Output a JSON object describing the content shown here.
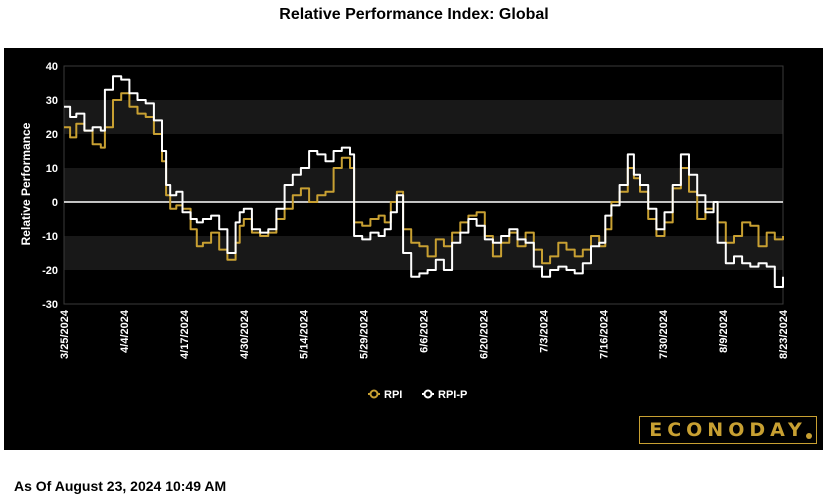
{
  "chart_data": {
    "type": "line",
    "title": "Relative Performance Index: Global",
    "ylabel": "Relative Performance",
    "xlabel": "",
    "ylim": [
      -30,
      40
    ],
    "yticks": [
      40,
      30,
      20,
      10,
      0,
      -10,
      -20,
      -30
    ],
    "xtick_labels": [
      "3/25/2024",
      "4/4/2024",
      "4/17/2024",
      "4/30/2024",
      "5/14/2024",
      "5/29/2024",
      "6/6/2024",
      "6/20/2024",
      "7/3/2024",
      "7/16/2024",
      "7/30/2024",
      "8/9/2024",
      "8/23/2024"
    ],
    "grid": "alternating horizontal bands",
    "legend_position": "bottom-center",
    "series": [
      {
        "name": "RPI",
        "color": "#c8a032",
        "values": [
          [
            0,
            22
          ],
          [
            3,
            19
          ],
          [
            6,
            23
          ],
          [
            10,
            21
          ],
          [
            14,
            17
          ],
          [
            18,
            16
          ],
          [
            20,
            22
          ],
          [
            24,
            30
          ],
          [
            28,
            32
          ],
          [
            32,
            28
          ],
          [
            36,
            26
          ],
          [
            40,
            25
          ],
          [
            44,
            20
          ],
          [
            48,
            12
          ],
          [
            50,
            2
          ],
          [
            52,
            -2
          ],
          [
            55,
            -1
          ],
          [
            58,
            -2
          ],
          [
            62,
            -8
          ],
          [
            65,
            -13
          ],
          [
            68,
            -12
          ],
          [
            72,
            -9
          ],
          [
            76,
            -14
          ],
          [
            80,
            -17
          ],
          [
            84,
            -12
          ],
          [
            86,
            -7
          ],
          [
            88,
            -5
          ],
          [
            92,
            -9
          ],
          [
            96,
            -10
          ],
          [
            100,
            -9
          ],
          [
            104,
            -5
          ],
          [
            108,
            -2
          ],
          [
            112,
            2
          ],
          [
            116,
            4
          ],
          [
            120,
            0
          ],
          [
            124,
            2
          ],
          [
            128,
            3
          ],
          [
            132,
            10
          ],
          [
            136,
            13
          ],
          [
            140,
            10
          ],
          [
            142,
            -6
          ],
          [
            146,
            -7
          ],
          [
            150,
            -5
          ],
          [
            154,
            -4
          ],
          [
            157,
            -6
          ],
          [
            160,
            0
          ],
          [
            163,
            3
          ],
          [
            166,
            -8
          ],
          [
            170,
            -12
          ],
          [
            174,
            -13
          ],
          [
            178,
            -16
          ],
          [
            182,
            -11
          ],
          [
            186,
            -13
          ],
          [
            190,
            -9
          ],
          [
            194,
            -6
          ],
          [
            198,
            -4
          ],
          [
            202,
            -3
          ],
          [
            206,
            -10
          ],
          [
            210,
            -16
          ],
          [
            214,
            -12
          ],
          [
            218,
            -9
          ],
          [
            222,
            -13
          ],
          [
            226,
            -9
          ],
          [
            230,
            -14
          ],
          [
            234,
            -18
          ],
          [
            238,
            -16
          ],
          [
            242,
            -12
          ],
          [
            246,
            -14
          ],
          [
            250,
            -16
          ],
          [
            254,
            -14
          ],
          [
            258,
            -10
          ],
          [
            262,
            -13
          ],
          [
            265,
            -8
          ],
          [
            268,
            0
          ],
          [
            272,
            3
          ],
          [
            276,
            10
          ],
          [
            279,
            7
          ],
          [
            282,
            3
          ],
          [
            286,
            -5
          ],
          [
            290,
            -10
          ],
          [
            294,
            -6
          ],
          [
            298,
            4
          ],
          [
            302,
            10
          ],
          [
            306,
            3
          ],
          [
            310,
            -5
          ],
          [
            314,
            -2
          ],
          [
            318,
            0
          ],
          [
            320,
            -6
          ],
          [
            324,
            -12
          ],
          [
            328,
            -10
          ],
          [
            332,
            -6
          ],
          [
            336,
            -7
          ],
          [
            340,
            -13
          ],
          [
            344,
            -9
          ],
          [
            348,
            -11
          ],
          [
            352,
            -10
          ]
        ]
      },
      {
        "name": "RPI-P",
        "color": "#ffffff",
        "values": [
          [
            0,
            28
          ],
          [
            3,
            25
          ],
          [
            6,
            26
          ],
          [
            10,
            21
          ],
          [
            14,
            22
          ],
          [
            18,
            21
          ],
          [
            20,
            33
          ],
          [
            24,
            37
          ],
          [
            28,
            36
          ],
          [
            32,
            32
          ],
          [
            36,
            30
          ],
          [
            40,
            29
          ],
          [
            44,
            24
          ],
          [
            48,
            15
          ],
          [
            50,
            5
          ],
          [
            52,
            2
          ],
          [
            55,
            3
          ],
          [
            58,
            -3
          ],
          [
            62,
            -5
          ],
          [
            65,
            -6
          ],
          [
            68,
            -5
          ],
          [
            72,
            -4
          ],
          [
            76,
            -8
          ],
          [
            80,
            -15
          ],
          [
            84,
            -6
          ],
          [
            86,
            -3
          ],
          [
            88,
            -2
          ],
          [
            92,
            -8
          ],
          [
            96,
            -9
          ],
          [
            100,
            -8
          ],
          [
            104,
            -2
          ],
          [
            108,
            5
          ],
          [
            112,
            8
          ],
          [
            116,
            10
          ],
          [
            120,
            15
          ],
          [
            124,
            14
          ],
          [
            128,
            12
          ],
          [
            132,
            15
          ],
          [
            136,
            16
          ],
          [
            140,
            14
          ],
          [
            142,
            -10
          ],
          [
            146,
            -11
          ],
          [
            150,
            -9
          ],
          [
            154,
            -10
          ],
          [
            157,
            -8
          ],
          [
            160,
            -3
          ],
          [
            163,
            2
          ],
          [
            166,
            -15
          ],
          [
            170,
            -22
          ],
          [
            174,
            -21
          ],
          [
            178,
            -20
          ],
          [
            182,
            -17
          ],
          [
            186,
            -20
          ],
          [
            190,
            -12
          ],
          [
            194,
            -9
          ],
          [
            198,
            -5
          ],
          [
            202,
            -7
          ],
          [
            206,
            -11
          ],
          [
            210,
            -12
          ],
          [
            214,
            -10
          ],
          [
            218,
            -8
          ],
          [
            222,
            -11
          ],
          [
            226,
            -12
          ],
          [
            230,
            -19
          ],
          [
            234,
            -22
          ],
          [
            238,
            -20
          ],
          [
            242,
            -19
          ],
          [
            246,
            -20
          ],
          [
            250,
            -21
          ],
          [
            254,
            -18
          ],
          [
            258,
            -13
          ],
          [
            262,
            -12
          ],
          [
            265,
            -4
          ],
          [
            268,
            -1
          ],
          [
            272,
            5
          ],
          [
            276,
            14
          ],
          [
            279,
            8
          ],
          [
            282,
            5
          ],
          [
            286,
            -2
          ],
          [
            290,
            -8
          ],
          [
            294,
            -3
          ],
          [
            298,
            5
          ],
          [
            302,
            14
          ],
          [
            306,
            8
          ],
          [
            310,
            2
          ],
          [
            314,
            -3
          ],
          [
            318,
            0
          ],
          [
            320,
            -12
          ],
          [
            324,
            -18
          ],
          [
            328,
            -16
          ],
          [
            332,
            -18
          ],
          [
            336,
            -19
          ],
          [
            340,
            -18
          ],
          [
            344,
            -19
          ],
          [
            348,
            -25
          ],
          [
            352,
            -22
          ]
        ]
      }
    ],
    "x_domain": [
      0,
      352
    ]
  },
  "logo": {
    "text": "ECONODAY"
  },
  "footer": {
    "timestamp": "As Of August 23, 2024 10:49 AM"
  }
}
